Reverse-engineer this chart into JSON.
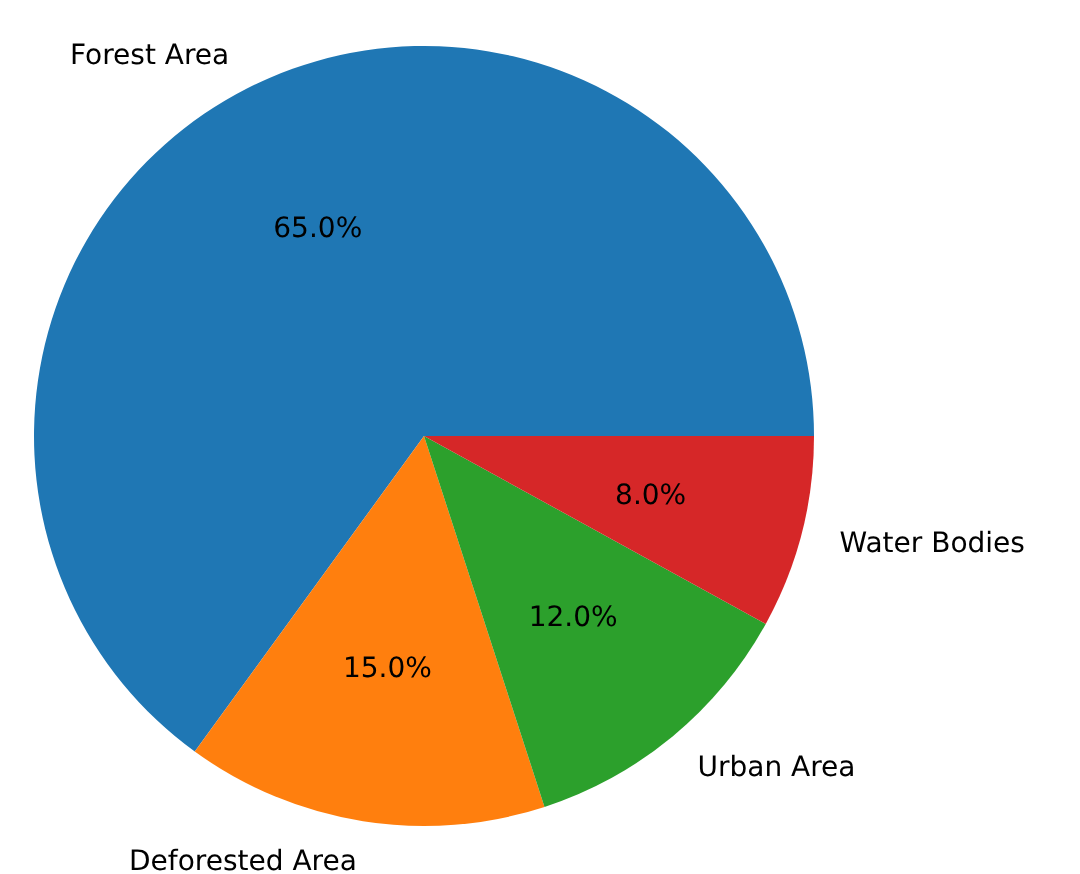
{
  "chart_data": {
    "type": "pie",
    "categories": [
      "Forest Area",
      "Deforested Area",
      "Urban Area",
      "Water Bodies"
    ],
    "values": [
      65,
      15,
      12,
      8
    ],
    "colors": [
      "#1f77b4",
      "#ff7f0e",
      "#2ca02c",
      "#d62728"
    ],
    "value_labels": [
      "65.0%",
      "15.0%",
      "12.0%",
      "8.0%"
    ]
  }
}
